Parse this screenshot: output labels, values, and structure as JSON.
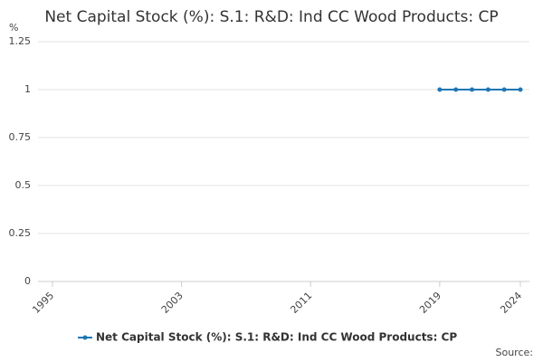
{
  "chart_data": {
    "type": "line",
    "title": "Net Capital Stock (%): S.1: R&D: Ind CC Wood Products: CP",
    "y_unit": "%",
    "source": "Source:",
    "x": [
      2019,
      2020,
      2021,
      2022,
      2023,
      2024
    ],
    "series": [
      {
        "name": "Net Capital Stock (%): S.1: R&D: Ind CC Wood Products: CP",
        "color": "#1f77b4",
        "values": [
          1,
          1,
          1,
          1,
          1,
          1
        ]
      }
    ],
    "xlim": [
      1995,
      2024
    ],
    "xticks": [
      1995,
      2003,
      2011,
      2019,
      2024
    ],
    "ylim": [
      0,
      1.25
    ],
    "yticks": [
      0,
      0.25,
      0.5,
      0.75,
      1,
      1.25
    ],
    "grid": true
  }
}
